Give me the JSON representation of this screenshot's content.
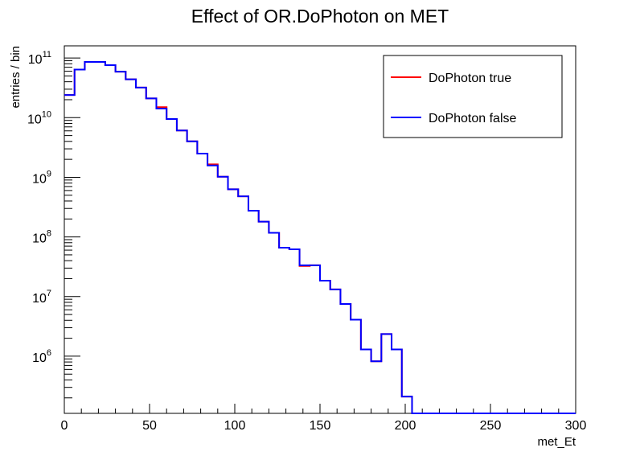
{
  "chart_data": {
    "type": "line",
    "title": "Effect of OR.DoPhoton on MET",
    "xlabel": "met_Et",
    "ylabel": "entries / bin",
    "xlim": [
      0,
      300
    ],
    "ylim": [
      110000.0,
      160000000000.0
    ],
    "yscale": "log",
    "grid": false,
    "legend_position": "top-right",
    "x_ticks": [
      {
        "value": 0,
        "label": "0"
      },
      {
        "value": 50,
        "label": "50"
      },
      {
        "value": 100,
        "label": "100"
      },
      {
        "value": 150,
        "label": "150"
      },
      {
        "value": 200,
        "label": "200"
      },
      {
        "value": 250,
        "label": "250"
      },
      {
        "value": 300,
        "label": "300"
      }
    ],
    "y_ticks": [
      {
        "value": 100000000000,
        "mantissa": "10",
        "exponent": "11"
      },
      {
        "value": 10000000000,
        "mantissa": "10",
        "exponent": "10"
      },
      {
        "value": 1000000000,
        "mantissa": "10",
        "exponent": "9"
      },
      {
        "value": 100000000,
        "mantissa": "10",
        "exponent": "8"
      },
      {
        "value": 10000000,
        "mantissa": "10",
        "exponent": "7"
      },
      {
        "value": 1000000,
        "mantissa": "10",
        "exponent": "6"
      }
    ],
    "bin_edges": [
      0,
      6,
      12,
      18,
      24,
      30,
      36,
      42,
      48,
      54,
      60,
      66,
      72,
      78,
      84,
      90,
      96,
      102,
      108,
      114,
      120,
      126,
      132,
      138,
      144,
      150,
      156,
      162,
      168,
      174,
      180,
      186,
      192,
      198,
      204,
      210,
      216,
      222,
      228,
      234,
      240,
      246,
      252,
      258,
      264,
      270,
      276,
      282,
      288,
      294,
      300
    ],
    "series": [
      {
        "name": "DoPhoton true",
        "color": "#ff0000",
        "values": [
          24000000000.0,
          64000000000.0,
          86000000000.0,
          86000000000.0,
          76000000000.0,
          59000000000.0,
          44000000000.0,
          32000000000.0,
          21000000000.0,
          15000000000.0,
          9500000000.0,
          6100000000.0,
          4000000000.0,
          2500000000.0,
          1650000000.0,
          1020000000.0,
          630000000.0,
          480000000.0,
          275000000.0,
          180000000.0,
          117000000.0,
          66000000.0,
          62000000.0,
          32500000.0,
          33500000.0,
          18500000.0,
          13200000.0,
          7500000.0,
          4100000.0,
          1300000.0,
          820000.0,
          2350000.0,
          1300000.0,
          210000.0,
          110000.0,
          110000.0,
          110000.0,
          110000.0,
          110000.0,
          110000.0,
          110000.0,
          110000.0,
          110000.0,
          110000.0,
          110000.0,
          110000.0,
          110000.0,
          110000.0,
          110000.0,
          110000.0
        ]
      },
      {
        "name": "DoPhoton false",
        "color": "#0000ff",
        "values": [
          24000000000.0,
          64000000000.0,
          86000000000.0,
          86000000000.0,
          76000000000.0,
          59000000000.0,
          44000000000.0,
          32000000000.0,
          21000000000.0,
          14200000000.0,
          9500000000.0,
          6100000000.0,
          4000000000.0,
          2500000000.0,
          1580000000.0,
          1020000000.0,
          630000000.0,
          480000000.0,
          275000000.0,
          180000000.0,
          117000000.0,
          66000000.0,
          62000000.0,
          33500000.0,
          33500000.0,
          18500000.0,
          13200000.0,
          7500000.0,
          4100000.0,
          1300000.0,
          820000.0,
          2350000.0,
          1300000.0,
          210000.0,
          110000.0,
          110000.0,
          110000.0,
          110000.0,
          110000.0,
          110000.0,
          110000.0,
          110000.0,
          110000.0,
          110000.0,
          110000.0,
          110000.0,
          110000.0,
          110000.0,
          110000.0,
          110000.0
        ]
      }
    ]
  }
}
